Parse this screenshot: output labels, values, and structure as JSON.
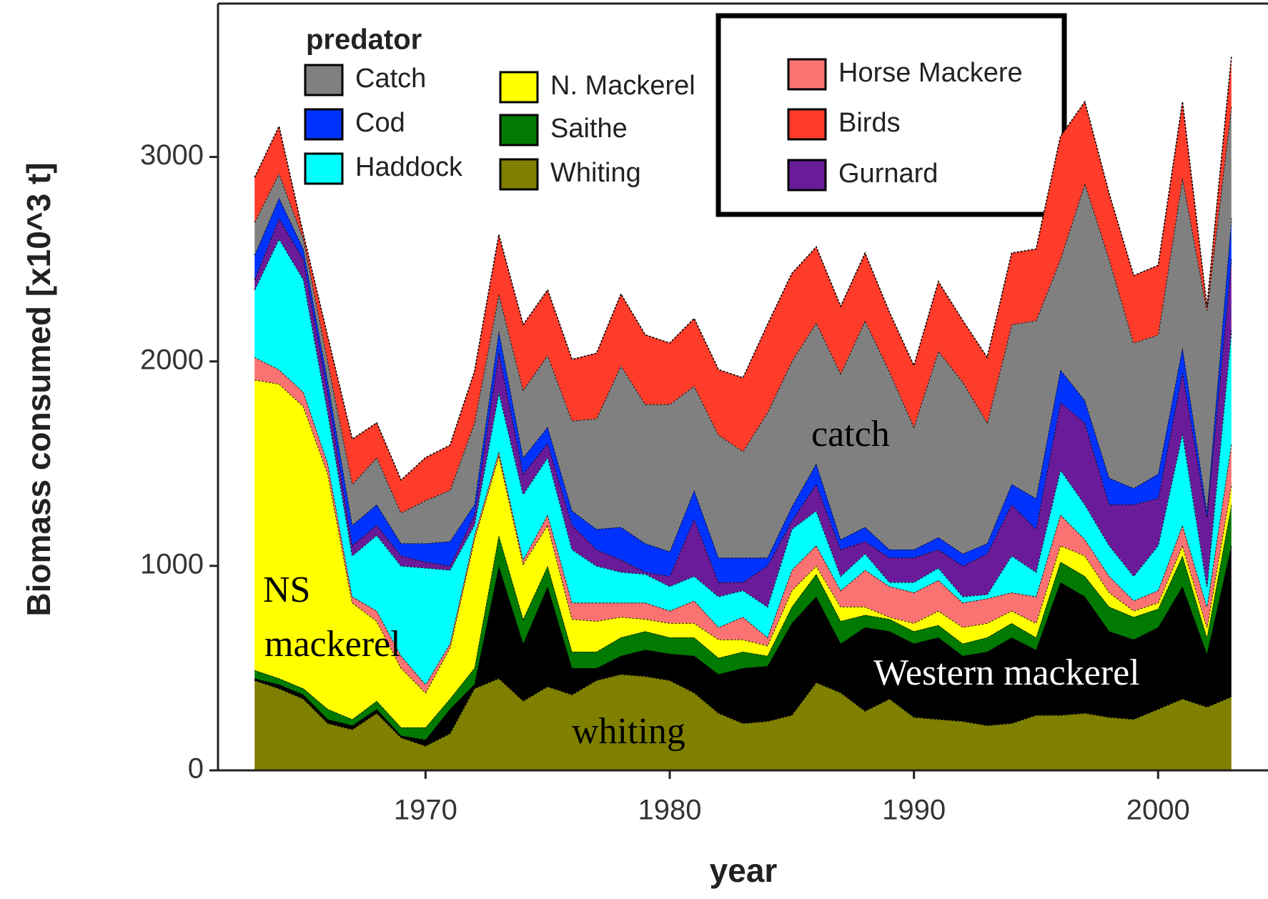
{
  "chart_data": {
    "type": "area",
    "stacked": true,
    "x_label": "year",
    "y_label": "Biomass consumed [x10^3 t]",
    "legend_title": "predator",
    "annotations": [
      "NS",
      "mackerel",
      "catch",
      "whiting",
      "Western mackerel"
    ],
    "xlim": [
      1961.5,
      2004.5
    ],
    "xticks": [
      1970,
      1980,
      1990,
      2000
    ],
    "ylim": [
      0,
      3750
    ],
    "yticks": [
      0,
      1000,
      2000,
      3000
    ],
    "x": [
      1963,
      1964,
      1965,
      1966,
      1967,
      1968,
      1969,
      1970,
      1971,
      1972,
      1973,
      1974,
      1975,
      1976,
      1977,
      1978,
      1979,
      1980,
      1981,
      1982,
      1983,
      1984,
      1985,
      1986,
      1987,
      1988,
      1989,
      1990,
      1991,
      1992,
      1993,
      1994,
      1995,
      1996,
      1997,
      1998,
      1999,
      2000,
      2001,
      2002,
      2003
    ],
    "series": [
      {
        "name": "Whiting",
        "color": "#808000",
        "values": [
          440,
          400,
          350,
          230,
          200,
          280,
          160,
          120,
          180,
          400,
          450,
          340,
          410,
          370,
          440,
          470,
          460,
          440,
          380,
          280,
          230,
          240,
          270,
          430,
          380,
          290,
          350,
          260,
          250,
          240,
          220,
          230,
          270,
          270,
          280,
          260,
          250,
          300,
          350,
          310,
          360
        ]
      },
      {
        "color": "#000000",
        "values": [
          10,
          20,
          20,
          20,
          20,
          20,
          10,
          30,
          120,
          20,
          550,
          280,
          490,
          130,
          60,
          90,
          130,
          130,
          180,
          190,
          270,
          270,
          450,
          420,
          240,
          410,
          330,
          360,
          400,
          320,
          360,
          420,
          320,
          650,
          570,
          420,
          390,
          400,
          550,
          260,
          740
        ]
      },
      {
        "name": "Saithe",
        "color": "#007a00",
        "values": [
          40,
          30,
          30,
          50,
          30,
          40,
          40,
          60,
          50,
          80,
          150,
          120,
          100,
          80,
          80,
          90,
          90,
          80,
          90,
          80,
          80,
          50,
          80,
          110,
          110,
          60,
          60,
          60,
          60,
          60,
          70,
          70,
          60,
          100,
          100,
          120,
          110,
          90,
          150,
          80,
          200
        ]
      },
      {
        "name": "N. Mackerel",
        "color": "#ffff00",
        "values": [
          1420,
          1440,
          1380,
          1150,
          570,
          390,
          290,
          170,
          250,
          630,
          390,
          270,
          200,
          160,
          150,
          100,
          60,
          70,
          70,
          90,
          60,
          50,
          80,
          40,
          70,
          40,
          10,
          40,
          70,
          80,
          70,
          60,
          70,
          80,
          100,
          70,
          30,
          30,
          50,
          50,
          100
        ]
      },
      {
        "name": "Horse Mackere",
        "color": "#fa7272",
        "values": [
          110,
          70,
          70,
          50,
          30,
          50,
          60,
          40,
          20,
          20,
          20,
          20,
          50,
          80,
          90,
          70,
          80,
          60,
          110,
          60,
          110,
          40,
          100,
          100,
          80,
          180,
          150,
          150,
          150,
          120,
          120,
          90,
          130,
          150,
          80,
          80,
          50,
          60,
          100,
          100,
          200
        ]
      },
      {
        "name": "Haddock",
        "color": "#00ffff",
        "values": [
          330,
          640,
          550,
          250,
          200,
          370,
          440,
          570,
          360,
          50,
          290,
          320,
          280,
          260,
          180,
          150,
          140,
          120,
          120,
          150,
          130,
          150,
          200,
          170,
          70,
          80,
          20,
          50,
          60,
          30,
          20,
          180,
          120,
          220,
          170,
          150,
          120,
          220,
          450,
          100,
          550
        ]
      },
      {
        "name": "Gurnard",
        "color": "#6a1b9a",
        "values": [
          50,
          100,
          100,
          100,
          50,
          50,
          50,
          30,
          20,
          50,
          200,
          100,
          70,
          120,
          80,
          60,
          10,
          50,
          280,
          70,
          40,
          200,
          40,
          130,
          130,
          60,
          120,
          120,
          90,
          150,
          200,
          250,
          210,
          330,
          400,
          200,
          350,
          230,
          300,
          340,
          350
        ]
      },
      {
        "name": "Cod",
        "color": "#0033ff",
        "values": [
          120,
          100,
          50,
          50,
          100,
          100,
          60,
          90,
          120,
          50,
          100,
          80,
          80,
          70,
          100,
          160,
          140,
          120,
          140,
          120,
          120,
          40,
          70,
          100,
          50,
          70,
          40,
          40,
          60,
          60,
          50,
          100,
          150,
          160,
          110,
          130,
          80,
          120,
          120,
          30,
          200
        ]
      },
      {
        "name": "Catch",
        "color": "#808080",
        "values": [
          160,
          120,
          50,
          100,
          200,
          230,
          150,
          210,
          250,
          400,
          180,
          330,
          350,
          440,
          540,
          790,
          680,
          720,
          510,
          600,
          520,
          710,
          710,
          690,
          810,
          1010,
          870,
          600,
          910,
          840,
          590,
          780,
          870,
          540,
          1060,
          1070,
          710,
          680,
          830,
          980,
          550
        ]
      },
      {
        "name": "Birds",
        "color": "#ff3b2a",
        "values": [
          220,
          230,
          20,
          120,
          220,
          170,
          160,
          210,
          220,
          250,
          290,
          320,
          320,
          300,
          320,
          350,
          340,
          300,
          330,
          320,
          360,
          430,
          430,
          370,
          330,
          330,
          290,
          300,
          340,
          300,
          320,
          350,
          350,
          600,
          400,
          320,
          330,
          340,
          370,
          20,
          240
        ]
      }
    ]
  }
}
